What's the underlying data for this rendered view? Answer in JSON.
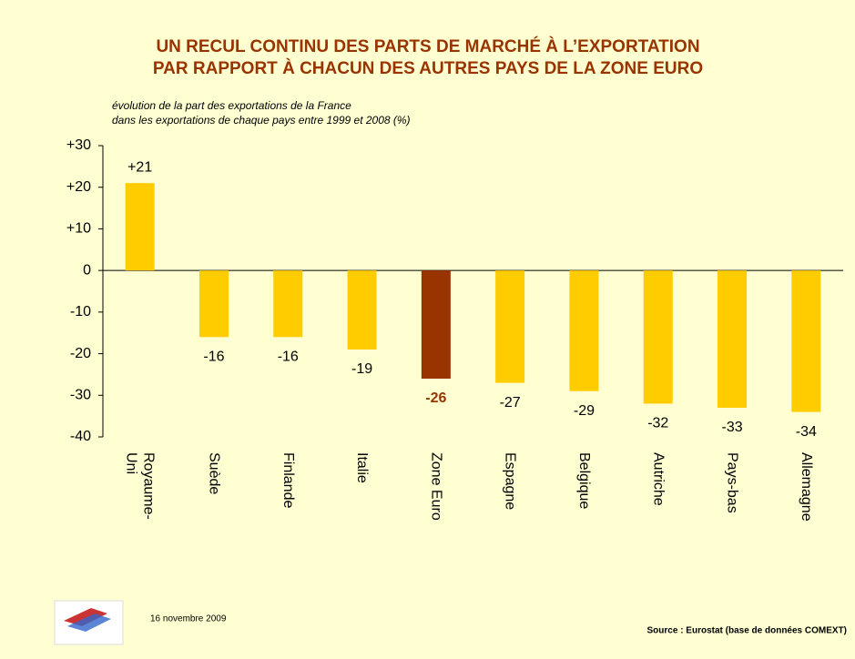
{
  "chart_data": {
    "type": "bar",
    "title": [
      "UN RECUL CONTINU DES PARTS DE MARCHÉ À L’EXPORTATION",
      "PAR RAPPORT À CHACUN DES AUTRES PAYS DE LA ZONE EURO"
    ],
    "subtitle": [
      "évolution de la part des exportations de la France",
      "dans les exportations de chaque pays entre 1999 et 2008 (%)"
    ],
    "categories": [
      "Royaume-Uni",
      "Suède",
      "Finlande",
      "Italie",
      "Zone Euro",
      "Espagne",
      "Belgique",
      "Autriche",
      "Pays-bas",
      "Allemagne"
    ],
    "values": [
      21,
      -16,
      -16,
      -19,
      -26,
      -27,
      -29,
      -32,
      -33,
      -34
    ],
    "value_labels": [
      "+21",
      "-16",
      "-16",
      "-19",
      "-26",
      "-27",
      "-29",
      "-32",
      "-33",
      "-34"
    ],
    "color": "#FFCC00",
    "colors": [
      "#FFCC00",
      "#FFCC00",
      "#FFCC00",
      "#FFCC00",
      "#993300",
      "#FFCC00",
      "#FFCC00",
      "#FFCC00",
      "#FFCC00",
      "#FFCC00"
    ],
    "ylim": [
      -40,
      30
    ],
    "yticks": [
      {
        "value": 30,
        "label": "+30"
      },
      {
        "value": 20,
        "label": "+20"
      },
      {
        "value": 10,
        "label": "+10"
      },
      0,
      -10,
      -20,
      -30,
      -40
    ],
    "date": "16 novembre 2009",
    "source": "Source : Eurostat (base de données COMEXT)"
  }
}
